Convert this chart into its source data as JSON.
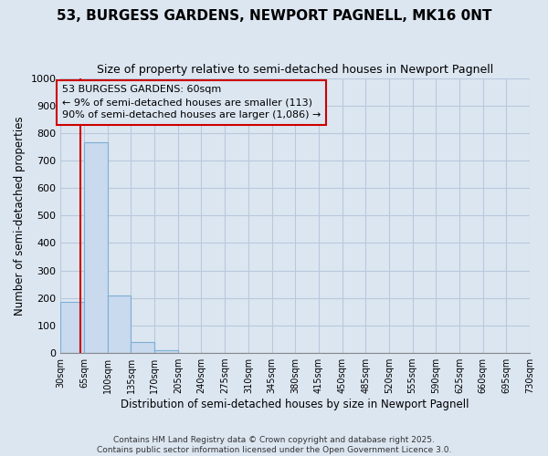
{
  "title": "53, BURGESS GARDENS, NEWPORT PAGNELL, MK16 0NT",
  "subtitle": "Size of property relative to semi-detached houses in Newport Pagnell",
  "xlabel": "Distribution of semi-detached houses by size in Newport Pagnell",
  "ylabel": "Number of semi-detached properties",
  "bin_edges": [
    30,
    65,
    100,
    135,
    170,
    205,
    240,
    275,
    310,
    345,
    380,
    415,
    450,
    485,
    520,
    555,
    590,
    625,
    660,
    695,
    730
  ],
  "bar_heights": [
    185,
    765,
    210,
    40,
    10,
    0,
    0,
    0,
    0,
    0,
    0,
    0,
    0,
    0,
    0,
    0,
    0,
    0,
    0,
    0
  ],
  "bar_color": "#c9d9ee",
  "bar_edge_color": "#7bafd4",
  "grid_color": "#b8c8dc",
  "background_color": "#dce6f1",
  "property_size": 60,
  "property_line_color": "#cc0000",
  "annotation_line1": "53 BURGESS GARDENS: 60sqm",
  "annotation_line2": "← 9% of semi-detached houses are smaller (113)",
  "annotation_line3": "90% of semi-detached houses are larger (1,086) →",
  "annotation_box_color": "#cc0000",
  "ylim": [
    0,
    1000
  ],
  "yticks": [
    0,
    100,
    200,
    300,
    400,
    500,
    600,
    700,
    800,
    900,
    1000
  ],
  "footer_line1": "Contains HM Land Registry data © Crown copyright and database right 2025.",
  "footer_line2": "Contains public sector information licensed under the Open Government Licence 3.0."
}
